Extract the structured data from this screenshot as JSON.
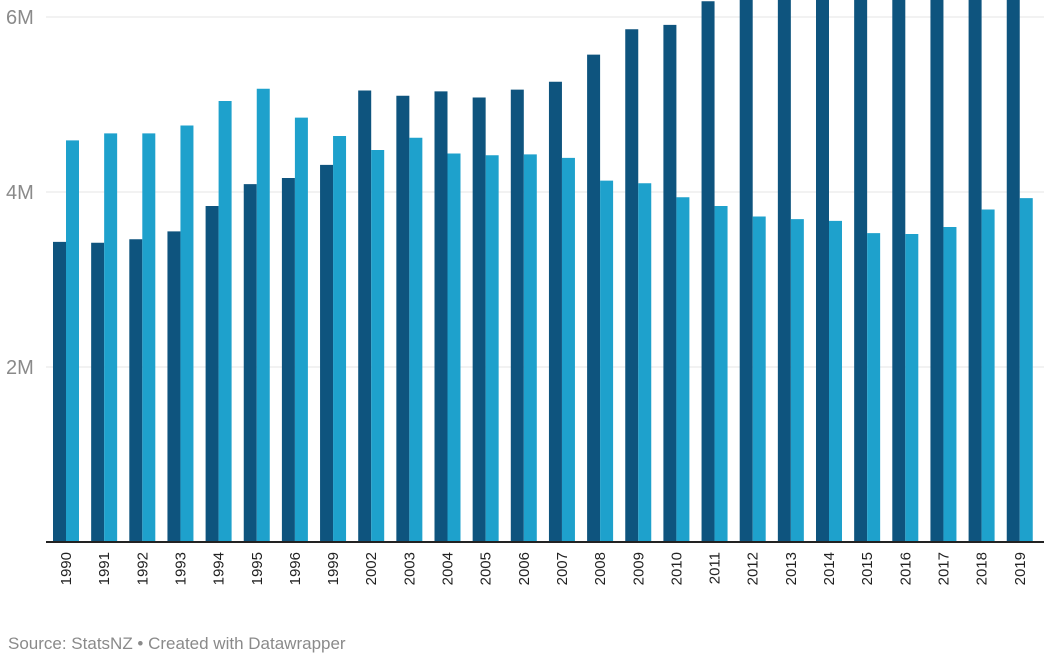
{
  "chart_data": {
    "type": "bar",
    "categories": [
      "1990",
      "1991",
      "1992",
      "1993",
      "1994",
      "1995",
      "1996",
      "1999",
      "2002",
      "2003",
      "2004",
      "2005",
      "2006",
      "2007",
      "2008",
      "2009",
      "2010",
      "2011",
      "2012",
      "2013",
      "2014",
      "2015",
      "2016",
      "2017",
      "2018",
      "2019"
    ],
    "series": [
      {
        "color": "#0e547e",
        "values": [
          3.43,
          3.42,
          3.46,
          3.55,
          3.84,
          4.09,
          4.16,
          4.31,
          5.16,
          5.1,
          5.15,
          5.08,
          5.17,
          5.26,
          5.57,
          5.86,
          5.91,
          6.18,
          6.5,
          6.5,
          6.5,
          6.5,
          6.5,
          6.5,
          6.5,
          6.5
        ]
      },
      {
        "color": "#1ea1cc",
        "values": [
          4.59,
          4.67,
          4.67,
          4.76,
          5.04,
          5.18,
          4.85,
          4.64,
          4.48,
          4.62,
          4.44,
          4.42,
          4.43,
          4.39,
          4.13,
          4.1,
          3.94,
          3.84,
          3.72,
          3.69,
          3.67,
          3.53,
          3.52,
          3.6,
          3.8,
          3.93
        ]
      }
    ],
    "yticks": [
      {
        "value": 2,
        "label": "2M"
      },
      {
        "value": 4,
        "label": "4M"
      },
      {
        "value": 6,
        "label": "6M"
      }
    ],
    "ylim": [
      0,
      6
    ],
    "grid": true,
    "source": "Source: StatsNZ • Created with Datawrapper"
  }
}
